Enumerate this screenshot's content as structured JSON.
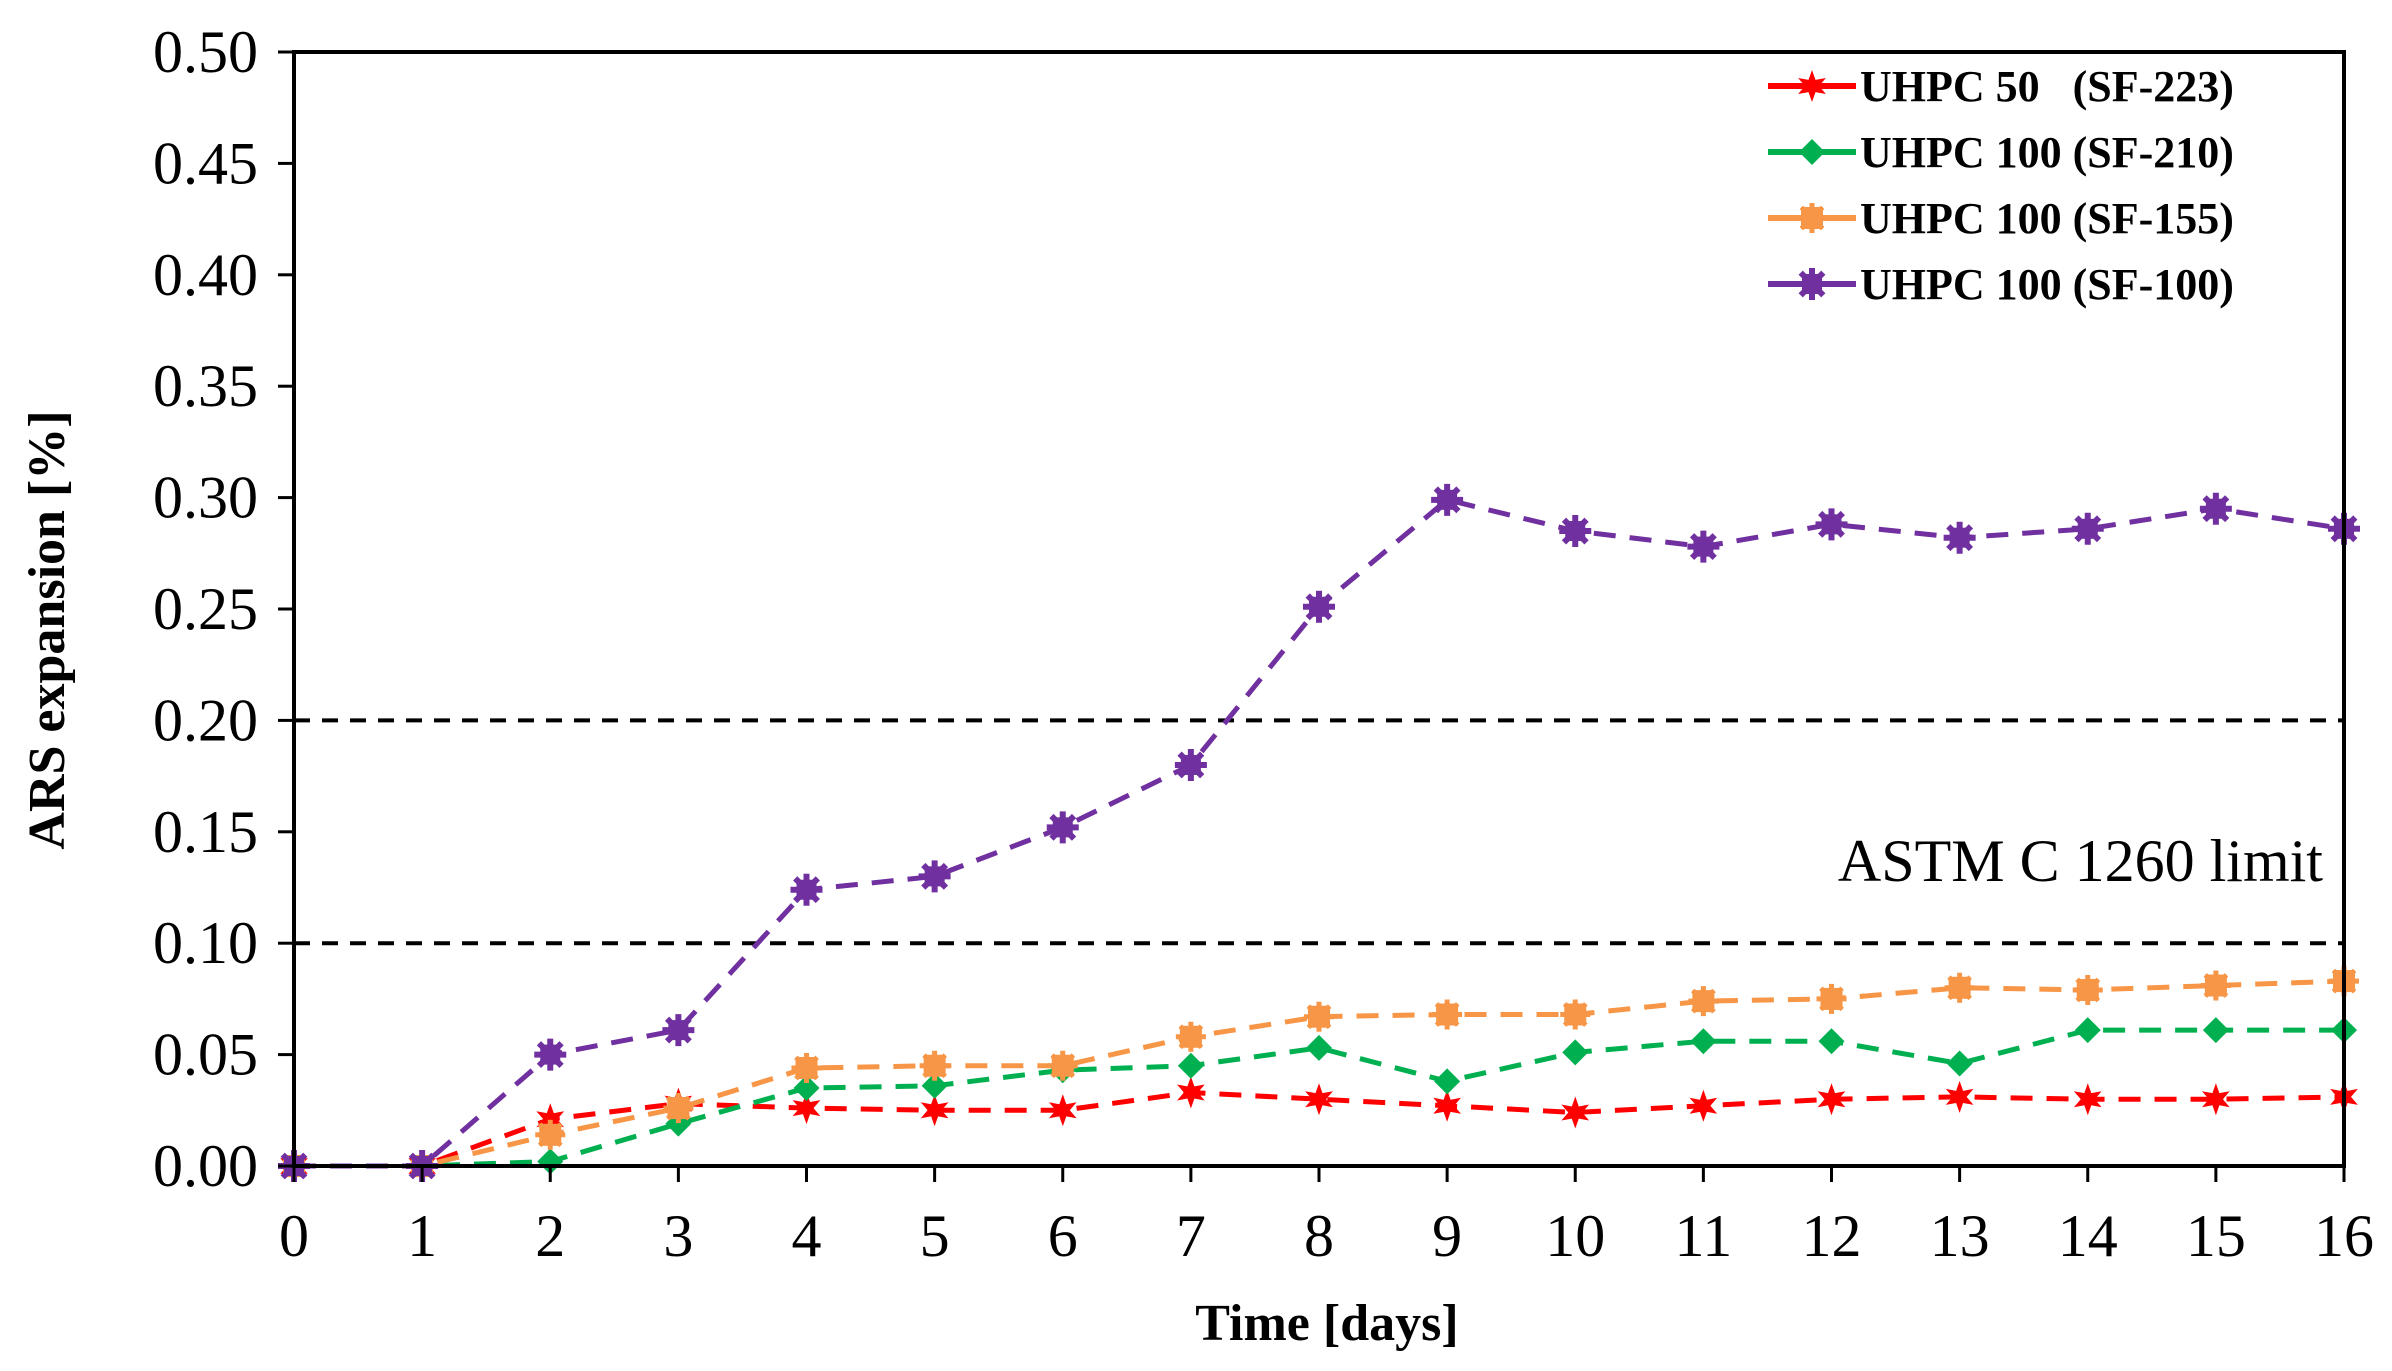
{
  "chart_data": {
    "type": "line",
    "title": "",
    "xlabel": "Time [days]",
    "ylabel": "ARS expansion [%]",
    "xlim": [
      0,
      16
    ],
    "ylim": [
      0,
      0.5
    ],
    "x": [
      0,
      1,
      2,
      3,
      4,
      5,
      6,
      7,
      8,
      9,
      10,
      11,
      12,
      13,
      14,
      15,
      16
    ],
    "x_ticks": [
      "0",
      "1",
      "2",
      "3",
      "4",
      "5",
      "6",
      "7",
      "8",
      "9",
      "10",
      "11",
      "12",
      "13",
      "14",
      "15",
      "16"
    ],
    "y_ticks_values": [
      0.0,
      0.05,
      0.1,
      0.15,
      0.2,
      0.25,
      0.3,
      0.35,
      0.4,
      0.45,
      0.5
    ],
    "y_ticks": [
      "0.00",
      "0.05",
      "0.10",
      "0.15",
      "0.20",
      "0.25",
      "0.30",
      "0.35",
      "0.40",
      "0.45",
      "0.50"
    ],
    "grid": false,
    "legend_position": "top-right",
    "reference_lines": [
      {
        "y": 0.2,
        "style": "dashed",
        "color": "#000000"
      },
      {
        "y": 0.1,
        "style": "dashed",
        "color": "#000000"
      }
    ],
    "annotations": [
      {
        "text": "ASTM C 1260 limit",
        "x": 12.05,
        "y": 0.128
      }
    ],
    "series": [
      {
        "name": "UHPC 50   (SF-223)",
        "color": "#ff0000",
        "marker": "star",
        "values": [
          0.0,
          0.0,
          0.021,
          0.028,
          0.026,
          0.025,
          0.025,
          0.033,
          0.03,
          0.027,
          0.024,
          0.027,
          0.03,
          0.031,
          0.03,
          0.03,
          0.031
        ]
      },
      {
        "name": "UHPC 100 (SF-210)",
        "color": "#00b050",
        "marker": "diamond",
        "values": [
          0.0,
          0.0,
          0.002,
          0.019,
          0.035,
          0.036,
          0.043,
          0.045,
          0.053,
          0.038,
          0.051,
          0.056,
          0.056,
          0.046,
          0.061,
          0.061,
          0.061
        ]
      },
      {
        "name": "UHPC 100 (SF-155)",
        "color": "#f79646",
        "marker": "square",
        "values": [
          0.0,
          0.0,
          0.014,
          0.026,
          0.044,
          0.045,
          0.045,
          0.058,
          0.067,
          0.068,
          0.068,
          0.074,
          0.075,
          0.08,
          0.079,
          0.081,
          0.083
        ]
      },
      {
        "name": "UHPC 100 (SF-100)",
        "color": "#7030a0",
        "marker": "asterisk",
        "values": [
          0.0,
          0.0,
          0.05,
          0.061,
          0.124,
          0.13,
          0.152,
          0.18,
          0.251,
          0.299,
          0.285,
          0.278,
          0.288,
          0.282,
          0.286,
          0.295,
          0.286
        ]
      }
    ]
  }
}
